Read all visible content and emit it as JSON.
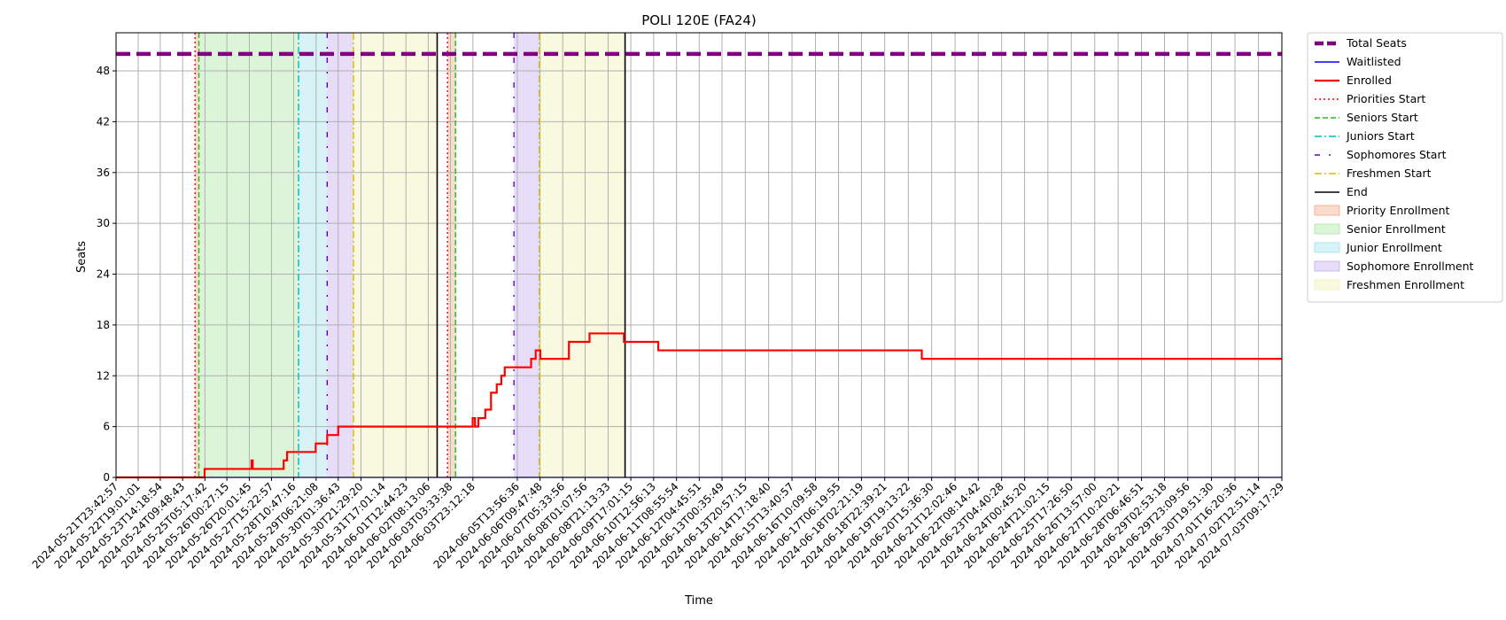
{
  "chart_data": {
    "type": "line",
    "title": "POLI 120E (FA24)",
    "xlabel": "Time",
    "ylabel": "Seats",
    "ylim": [
      0,
      52.5
    ],
    "yticks": [
      0,
      6,
      12,
      18,
      24,
      30,
      36,
      42,
      48
    ],
    "xlim": [
      "2024-05-21T23:42:57",
      "2024-07-03T09:17:29"
    ],
    "xticks": [
      "2024-05-21T23:42:57",
      "2024-05-22T19:01:01",
      "2024-05-23T14:18:54",
      "2024-05-24T09:48:43",
      "2024-05-25T05:17:42",
      "2024-05-26T00:27:15",
      "2024-05-26T20:01:45",
      "2024-05-27T15:22:57",
      "2024-05-28T10:47:16",
      "2024-05-29T06:21:08",
      "2024-05-30T01:36:43",
      "2024-05-30T21:29:20",
      "2024-05-31T17:01:14",
      "2024-06-01T12:44:23",
      "2024-06-02T08:13:06",
      "2024-06-03T03:33:38",
      "2024-06-03T23:12:18",
      "2024-06-05T13:56:36",
      "2024-06-06T09:47:48",
      "2024-06-07T05:33:56",
      "2024-06-08T01:07:56",
      "2024-06-08T21:13:33",
      "2024-06-09T17:01:15",
      "2024-06-10T12:56:13",
      "2024-06-11T08:55:54",
      "2024-06-12T04:45:51",
      "2024-06-13T00:35:49",
      "2024-06-13T20:57:15",
      "2024-06-14T17:18:40",
      "2024-06-15T13:40:57",
      "2024-06-16T10:09:58",
      "2024-06-17T06:19:55",
      "2024-06-18T02:21:19",
      "2024-06-18T22:39:21",
      "2024-06-19T19:13:22",
      "2024-06-20T15:36:30",
      "2024-06-21T12:02:46",
      "2024-06-22T08:14:42",
      "2024-06-23T04:40:28",
      "2024-06-24T00:45:20",
      "2024-06-24T21:02:15",
      "2024-06-25T17:26:50",
      "2024-06-26T13:57:00",
      "2024-06-27T10:20:21",
      "2024-06-28T06:46:51",
      "2024-06-29T02:53:18",
      "2024-06-29T23:09:56",
      "2024-06-30T19:51:30",
      "2024-07-01T16:20:36",
      "2024-07-02T12:51:14",
      "2024-07-03T09:17:29"
    ],
    "total_seats": 50,
    "series": [
      {
        "name": "Total Seats",
        "color": "#800080",
        "style": "dashed-thick",
        "x": [
          "2024-05-21T23:42:57",
          "2024-07-03T09:17:29"
        ],
        "y": [
          50,
          50
        ]
      },
      {
        "name": "Waitlisted",
        "color": "#0000ff",
        "style": "solid",
        "x": [
          "2024-05-21T23:42:57",
          "2024-07-03T09:17:29"
        ],
        "y": [
          0,
          0
        ]
      },
      {
        "name": "Enrolled",
        "color": "#ff0000",
        "style": "steps",
        "x": [
          "2024-05-21T23:42:57",
          "2024-05-25T05:00:00",
          "2024-05-25T07:00:00",
          "2024-05-26T22:00:00",
          "2024-05-26T23:00:00",
          "2024-05-28T02:00:00",
          "2024-05-28T05:00:00",
          "2024-05-28T10:00:00",
          "2024-05-29T06:00:00",
          "2024-05-29T16:00:00",
          "2024-05-30T01:36:43",
          "2024-06-03T23:00:00",
          "2024-06-04T01:00:00",
          "2024-06-04T04:00:00",
          "2024-06-04T10:00:00",
          "2024-06-04T15:00:00",
          "2024-06-04T20:00:00",
          "2024-06-05T00:00:00",
          "2024-06-05T03:00:00",
          "2024-06-05T06:00:00",
          "2024-06-06T02:00:00",
          "2024-06-06T06:00:00",
          "2024-06-06T10:00:00",
          "2024-06-07T11:00:00",
          "2024-06-08T05:00:00",
          "2024-06-09T11:00:00",
          "2024-06-10T17:00:00",
          "2024-06-20T07:00:00",
          "2024-07-03T09:17:29"
        ],
        "y": [
          0,
          1,
          1,
          2,
          1,
          2,
          3,
          3,
          4,
          5,
          6,
          7,
          6,
          7,
          8,
          10,
          11,
          12,
          13,
          13,
          14,
          15,
          14,
          16,
          17,
          16,
          15,
          14,
          14
        ]
      }
    ],
    "periods": [
      {
        "name": "Priority Enrollment",
        "color": "#f4a582",
        "start": "2024-05-24T20:40:00",
        "end": "2024-05-25T00:00:00"
      },
      {
        "name": "Senior Enrollment",
        "color": "#a8e6a0",
        "start": "2024-05-25T00:00:00",
        "end": "2024-05-28T15:00:00"
      },
      {
        "name": "Junior Enrollment",
        "color": "#9de0ee",
        "start": "2024-05-28T15:00:00",
        "end": "2024-05-29T16:00:00"
      },
      {
        "name": "Sophomore Enrollment",
        "color": "#c5a9ef",
        "start": "2024-05-29T16:00:00",
        "end": "2024-05-30T15:00:00"
      },
      {
        "name": "Freshmen Enrollment",
        "color": "#f0f0b0",
        "start": "2024-05-30T15:00:00",
        "end": "2024-06-02T16:00:00"
      },
      {
        "name": "Priority Enrollment",
        "color": "#f4a582",
        "start": "2024-06-03T01:00:00",
        "end": "2024-06-03T08:00:00"
      },
      {
        "name": "Senior Enrollment",
        "color": "#a8e6a0",
        "start": "2024-06-03T08:00:00",
        "end": "2024-06-03T09:00:00"
      },
      {
        "name": "Sophomore Enrollment",
        "color": "#c5a9ef",
        "start": "2024-06-05T11:00:00",
        "end": "2024-06-06T09:00:00"
      },
      {
        "name": "Freshmen Enrollment",
        "color": "#f0f0b0",
        "start": "2024-06-06T09:00:00",
        "end": "2024-06-09T12:00:00"
      }
    ],
    "markers": [
      {
        "name": "Priorities Start",
        "color": "#ff0000",
        "style": "dotted",
        "x": "2024-05-24T20:40:00"
      },
      {
        "name": "Seniors Start",
        "color": "#22bb22",
        "style": "dashed",
        "x": "2024-05-25T00:00:00"
      },
      {
        "name": "Juniors Start",
        "color": "#00bbbb",
        "style": "dashdot",
        "x": "2024-05-28T15:00:00"
      },
      {
        "name": "Sophomores Start",
        "color": "#6600cc",
        "style": "dashdot-sparse",
        "x": "2024-05-29T16:00:00"
      },
      {
        "name": "Freshmen Start",
        "color": "#ddbb00",
        "style": "dashdot",
        "x": "2024-05-30T15:00:00"
      },
      {
        "name": "End",
        "color": "#000000",
        "style": "solid",
        "x": "2024-06-02T16:00:00"
      },
      {
        "name": "Priorities Start",
        "color": "#ff0000",
        "style": "dotted",
        "x": "2024-06-03T01:00:00"
      },
      {
        "name": "Seniors Start",
        "color": "#22bb22",
        "style": "dashed",
        "x": "2024-06-03T08:00:00"
      },
      {
        "name": "Sophomores Start",
        "color": "#6600cc",
        "style": "dashdot-sparse",
        "x": "2024-06-05T11:00:00"
      },
      {
        "name": "Freshmen Start",
        "color": "#ddbb00",
        "style": "dashdot",
        "x": "2024-06-06T09:00:00"
      },
      {
        "name": "End",
        "color": "#000000",
        "style": "solid",
        "x": "2024-06-09T12:00:00"
      }
    ],
    "grid": true,
    "legend_position": "outside-right-top",
    "legend": [
      {
        "label": "Total Seats",
        "kind": "line",
        "color": "#800080",
        "style": "dashed-thick"
      },
      {
        "label": "Waitlisted",
        "kind": "line",
        "color": "#0000ff",
        "style": "solid"
      },
      {
        "label": "Enrolled",
        "kind": "line",
        "color": "#ff0000",
        "style": "solid-thick"
      },
      {
        "label": "Priorities Start",
        "kind": "line",
        "color": "#ff0000",
        "style": "dotted"
      },
      {
        "label": "Seniors Start",
        "kind": "line",
        "color": "#22bb22",
        "style": "dashed"
      },
      {
        "label": "Juniors Start",
        "kind": "line",
        "color": "#00bbbb",
        "style": "dashdot"
      },
      {
        "label": "Sophomores Start",
        "kind": "line",
        "color": "#6600cc",
        "style": "dashdot-sparse"
      },
      {
        "label": "Freshmen Start",
        "kind": "line",
        "color": "#ddbb00",
        "style": "dashdot"
      },
      {
        "label": "End",
        "kind": "line",
        "color": "#000000",
        "style": "solid"
      },
      {
        "label": "Priority Enrollment",
        "kind": "patch",
        "color": "#f4a582"
      },
      {
        "label": "Senior Enrollment",
        "kind": "patch",
        "color": "#a8e6a0"
      },
      {
        "label": "Junior Enrollment",
        "kind": "patch",
        "color": "#9de0ee"
      },
      {
        "label": "Sophomore Enrollment",
        "kind": "patch",
        "color": "#c5a9ef"
      },
      {
        "label": "Freshmen Enrollment",
        "kind": "patch",
        "color": "#f0f0b0"
      }
    ]
  }
}
